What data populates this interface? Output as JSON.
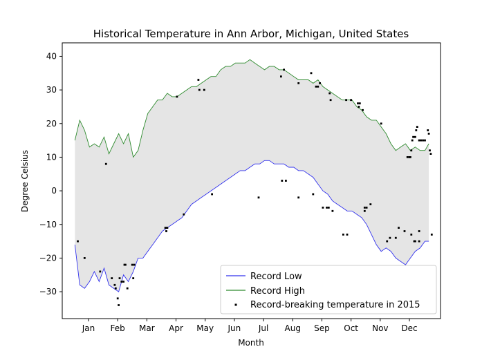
{
  "chart_data": {
    "type": "line",
    "title": "Historical Temperature in Ann Arbor, Michigan, United States",
    "xlabel": "Month",
    "ylabel": "Degree Celsius",
    "xlim": [
      -12,
      377
    ],
    "ylim": [
      -38,
      44
    ],
    "x_ticks": [
      {
        "label": "Jan",
        "x": 15
      },
      {
        "label": "Feb",
        "x": 45
      },
      {
        "label": "Mar",
        "x": 75
      },
      {
        "label": "Apr",
        "x": 105
      },
      {
        "label": "May",
        "x": 135
      },
      {
        "label": "Jun",
        "x": 165
      },
      {
        "label": "Jul",
        "x": 195
      },
      {
        "label": "Aug",
        "x": 225
      },
      {
        "label": "Sep",
        "x": 255
      },
      {
        "label": "Oct",
        "x": 285
      },
      {
        "label": "Nov",
        "x": 315
      },
      {
        "label": "Dec",
        "x": 345
      }
    ],
    "y_ticks": [
      -30,
      -20,
      -10,
      0,
      10,
      20,
      30,
      40
    ],
    "fill_between": {
      "color": "#e5e5e5",
      "between": [
        "Record Low",
        "Record High"
      ]
    },
    "legend": {
      "position": "lower-right",
      "entries": [
        "Record Low",
        "Record High",
        "Record-breaking temperature in 2015"
      ]
    },
    "series": [
      {
        "name": "Record Low",
        "kind": "line",
        "color": "#3333ee",
        "x": [
          1,
          6,
          11,
          16,
          21,
          26,
          31,
          36,
          41,
          46,
          51,
          56,
          61,
          66,
          71,
          76,
          81,
          86,
          91,
          96,
          101,
          106,
          111,
          116,
          121,
          126,
          131,
          136,
          141,
          146,
          151,
          156,
          161,
          166,
          171,
          176,
          181,
          186,
          191,
          196,
          201,
          206,
          211,
          216,
          221,
          226,
          231,
          236,
          241,
          246,
          251,
          256,
          261,
          266,
          271,
          276,
          281,
          286,
          291,
          296,
          301,
          306,
          311,
          316,
          321,
          326,
          331,
          336,
          341,
          346,
          351,
          356,
          361,
          365
        ],
        "y": [
          -16,
          -28,
          -29,
          -27,
          -24,
          -27,
          -23,
          -28,
          -29,
          -30,
          -25,
          -27,
          -24,
          -20,
          -20,
          -18,
          -16,
          -14,
          -12,
          -11,
          -10,
          -9,
          -8,
          -6,
          -4,
          -3,
          -2,
          -1,
          0,
          1,
          2,
          3,
          4,
          5,
          6,
          6,
          7,
          8,
          8,
          9,
          9,
          8,
          8,
          8,
          7,
          7,
          6,
          6,
          5,
          4,
          2,
          0,
          -1,
          -3,
          -4,
          -5,
          -6,
          -6,
          -7,
          -8,
          -10,
          -13,
          -16,
          -18,
          -17,
          -18,
          -20,
          -21,
          -22,
          -20,
          -18,
          -17,
          -15,
          -15
        ]
      },
      {
        "name": "Record High",
        "kind": "line",
        "color": "#2e8b2e",
        "x": [
          1,
          6,
          11,
          16,
          21,
          26,
          31,
          36,
          41,
          46,
          51,
          56,
          61,
          66,
          71,
          76,
          81,
          86,
          91,
          96,
          101,
          106,
          111,
          116,
          121,
          126,
          131,
          136,
          141,
          146,
          151,
          156,
          161,
          166,
          171,
          176,
          181,
          186,
          191,
          196,
          201,
          206,
          211,
          216,
          221,
          226,
          231,
          236,
          241,
          246,
          251,
          256,
          261,
          266,
          271,
          276,
          281,
          286,
          291,
          296,
          301,
          306,
          311,
          316,
          321,
          326,
          331,
          336,
          341,
          346,
          351,
          356,
          361,
          365
        ],
        "y": [
          15,
          21,
          18,
          13,
          14,
          13,
          16,
          11,
          14,
          17,
          14,
          17,
          10,
          12,
          18,
          23,
          25,
          27,
          27,
          29,
          28,
          28,
          29,
          30,
          31,
          31,
          32,
          33,
          34,
          34,
          36,
          37,
          37,
          38,
          38,
          38,
          39,
          38,
          37,
          36,
          37,
          37,
          36,
          36,
          35,
          34,
          33,
          33,
          33,
          32,
          33,
          31,
          30,
          29,
          28,
          27,
          27,
          27,
          25,
          24,
          22,
          21,
          21,
          19,
          17,
          14,
          12,
          13,
          14,
          12,
          13,
          12,
          12,
          14
        ]
      },
      {
        "name": "Record-breaking temperature in 2015",
        "kind": "scatter",
        "color": "#000000",
        "points": [
          [
            4,
            -15
          ],
          [
            11,
            -20
          ],
          [
            27,
            -24
          ],
          [
            39,
            -26
          ],
          [
            42,
            -28
          ],
          [
            43,
            -29
          ],
          [
            45,
            -32
          ],
          [
            46,
            -34
          ],
          [
            47,
            -26
          ],
          [
            49,
            -27
          ],
          [
            51,
            -27
          ],
          [
            52,
            -22
          ],
          [
            53,
            -22
          ],
          [
            55,
            -29
          ],
          [
            60,
            -22
          ],
          [
            61,
            -26
          ],
          [
            62,
            -22
          ],
          [
            94,
            -11
          ],
          [
            95,
            -12
          ],
          [
            96,
            -11
          ],
          [
            113,
            -7
          ],
          [
            142,
            -1
          ],
          [
            190,
            -2
          ],
          [
            214,
            3
          ],
          [
            218,
            3
          ],
          [
            231,
            -2
          ],
          [
            246,
            -1
          ],
          [
            256,
            -5
          ],
          [
            260,
            -5
          ],
          [
            262,
            -5
          ],
          [
            266,
            -6
          ],
          [
            277,
            -13
          ],
          [
            281,
            -13
          ],
          [
            299,
            -5
          ],
          [
            299,
            -6
          ],
          [
            301,
            -5
          ],
          [
            305,
            -4
          ],
          [
            322,
            -15
          ],
          [
            325,
            -14
          ],
          [
            331,
            -14
          ],
          [
            334,
            -11
          ],
          [
            340,
            -12
          ],
          [
            347,
            -13
          ],
          [
            350,
            -15
          ],
          [
            351,
            -15
          ],
          [
            355,
            -15
          ],
          [
            355,
            -12
          ],
          [
            368,
            -13
          ],
          [
            33,
            8
          ],
          [
            106,
            28
          ],
          [
            128,
            33
          ],
          [
            129,
            30
          ],
          [
            134,
            30
          ],
          [
            213,
            34
          ],
          [
            216,
            36
          ],
          [
            231,
            32
          ],
          [
            244,
            35
          ],
          [
            249,
            31
          ],
          [
            251,
            31
          ],
          [
            253,
            32
          ],
          [
            263,
            29
          ],
          [
            264,
            27
          ],
          [
            280,
            27
          ],
          [
            285,
            27
          ],
          [
            292,
            26
          ],
          [
            293,
            25
          ],
          [
            294,
            26
          ],
          [
            297,
            24
          ],
          [
            316,
            20
          ],
          [
            343,
            10
          ],
          [
            345,
            10
          ],
          [
            346,
            10
          ],
          [
            347,
            12
          ],
          [
            348,
            15
          ],
          [
            349,
            16
          ],
          [
            351,
            16
          ],
          [
            352,
            18
          ],
          [
            353,
            19
          ],
          [
            355,
            15
          ],
          [
            357,
            15
          ],
          [
            359,
            15
          ],
          [
            361,
            15
          ],
          [
            364,
            18
          ],
          [
            365,
            17
          ],
          [
            366,
            12
          ],
          [
            367,
            11
          ]
        ]
      }
    ]
  }
}
